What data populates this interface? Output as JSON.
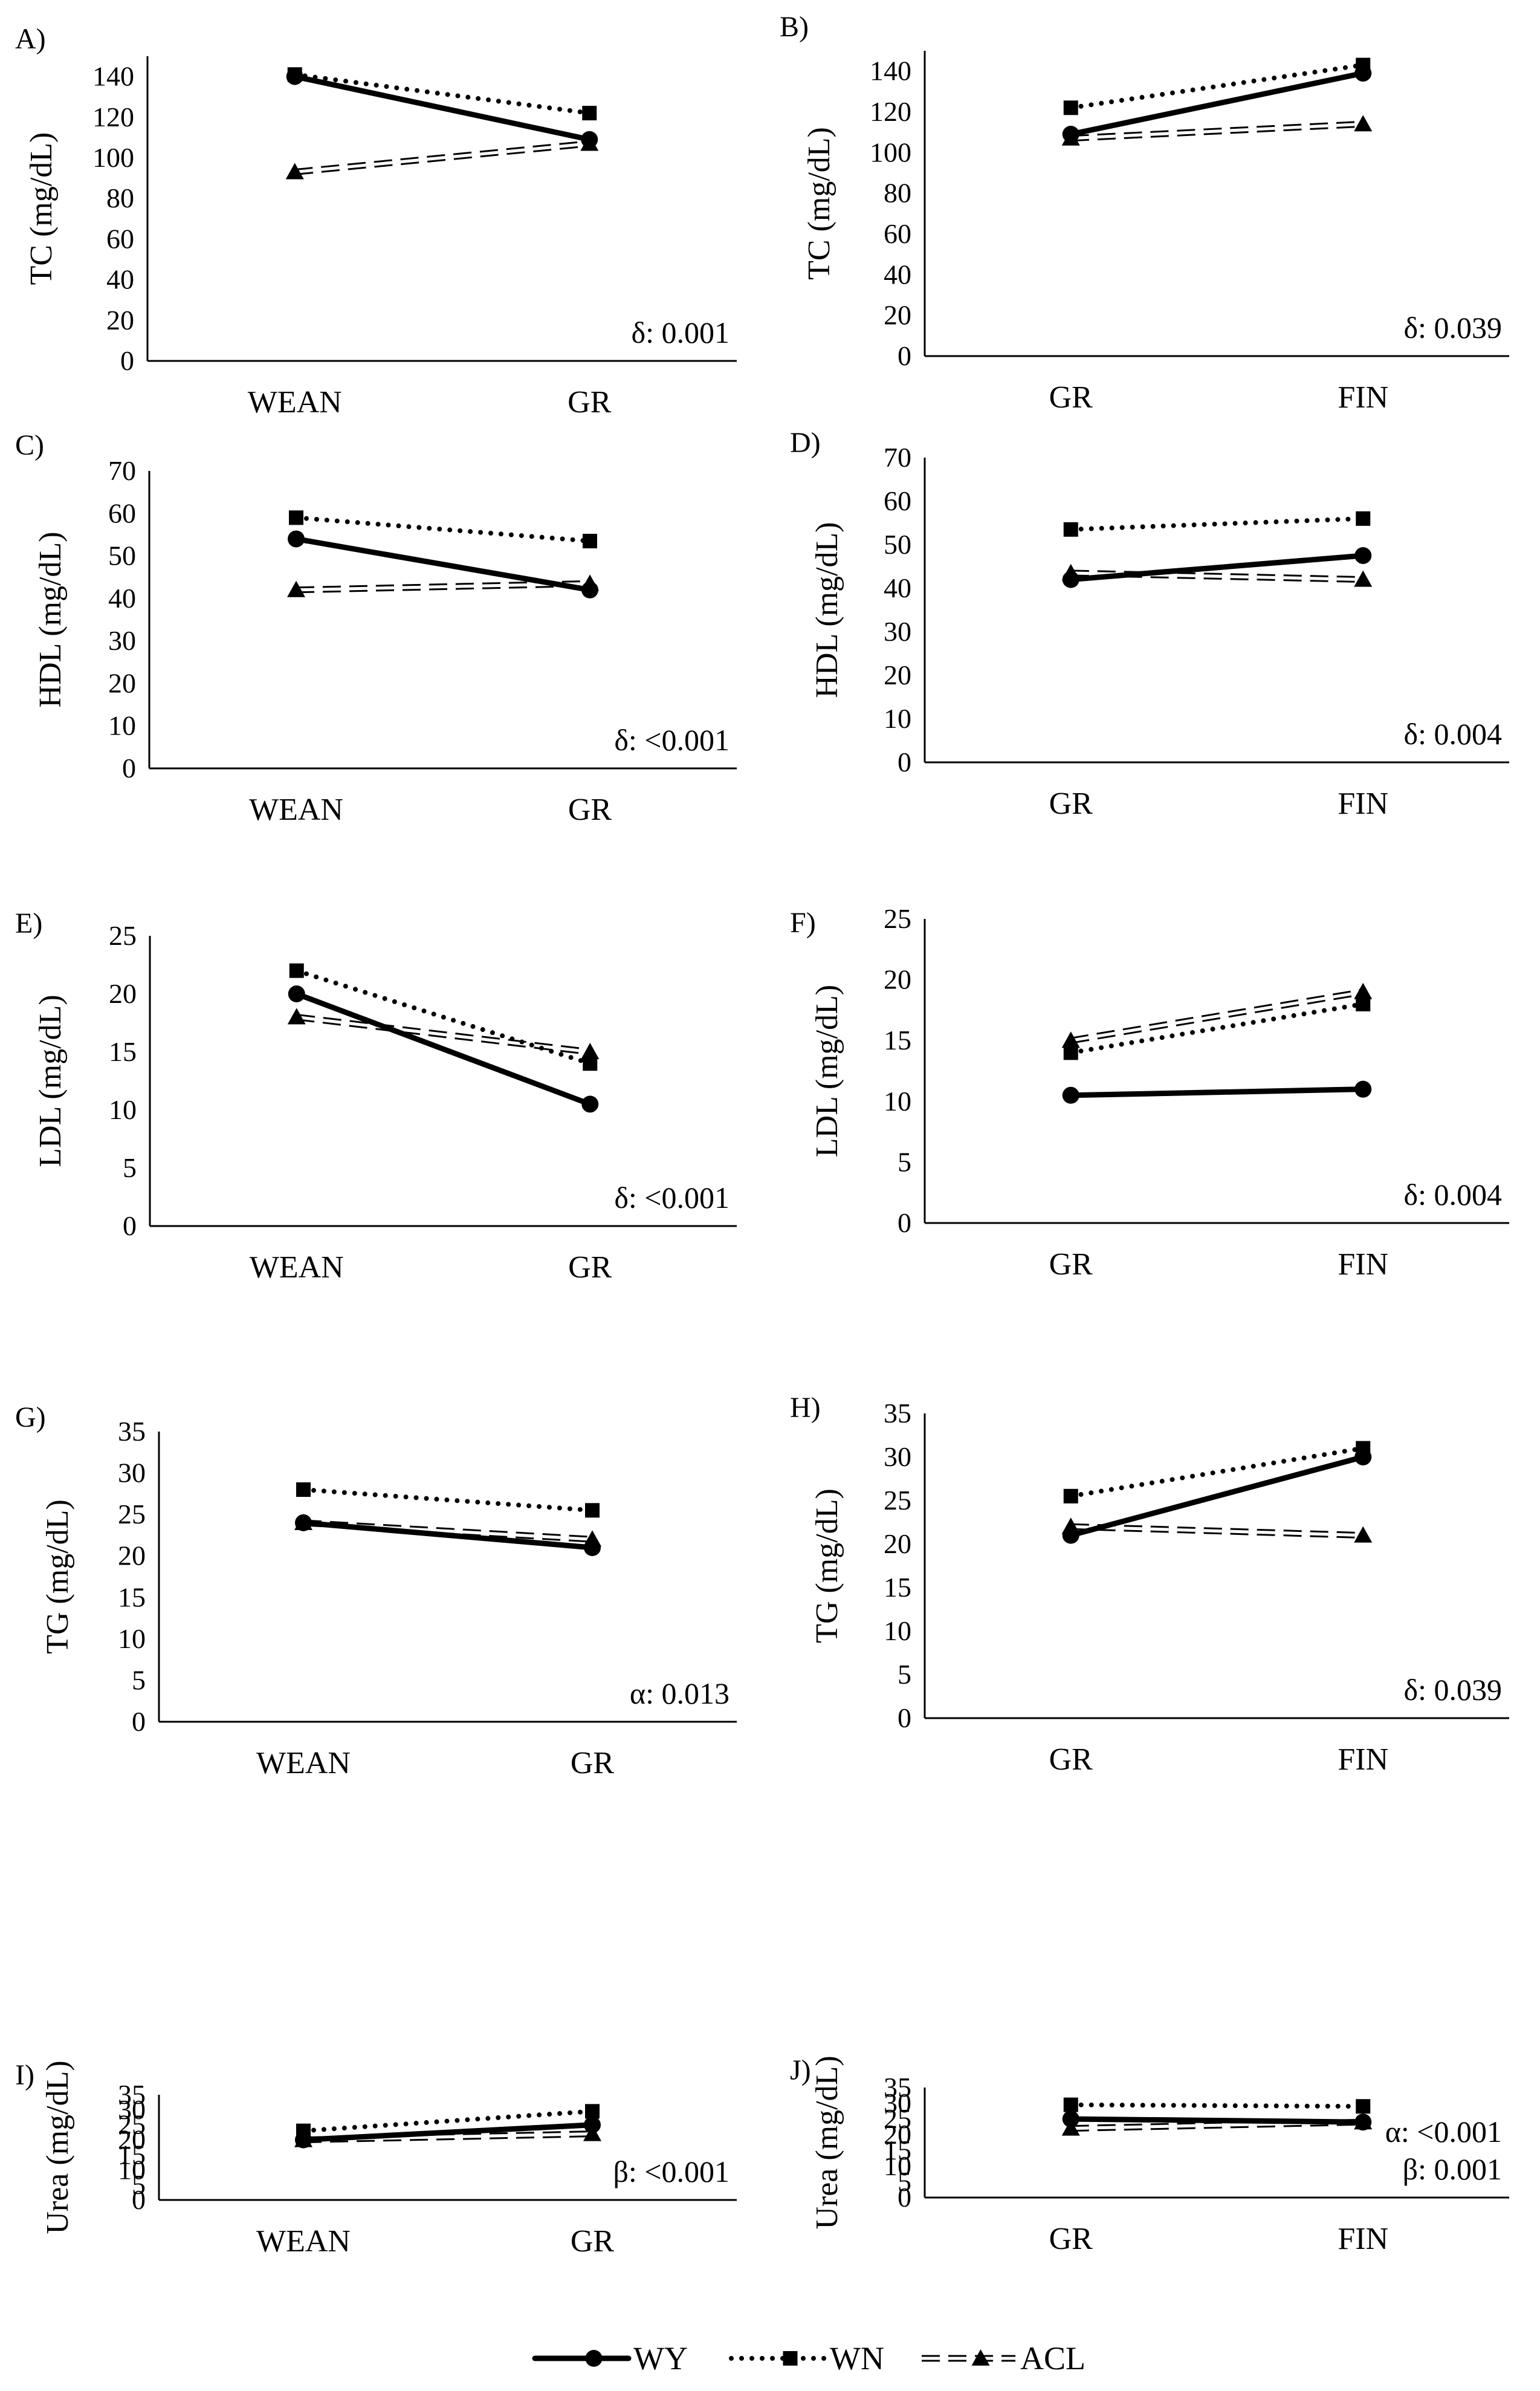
{
  "series_styles": {
    "WY": {
      "color": "#000000",
      "marker": "circle",
      "line": "solid"
    },
    "WN": {
      "color": "#000000",
      "marker": "square",
      "line": "dotted"
    },
    "ACL": {
      "color": "#000000",
      "marker": "triangle",
      "line": "hollow-dashed"
    }
  },
  "legend": [
    "WY",
    "WN",
    "ACL"
  ],
  "chart_data": [
    {
      "type": "line",
      "panel_label": "A)",
      "categories": [
        "WEAN",
        "GR"
      ],
      "ylabel": "TC (mg/dL)",
      "ylim": [
        0,
        150
      ],
      "yticks": [
        0,
        20,
        40,
        60,
        80,
        100,
        120,
        140
      ],
      "annotations": [
        "δ: 0.001"
      ],
      "series": [
        {
          "name": "WY",
          "values": [
            140,
            109
          ]
        },
        {
          "name": "WN",
          "values": [
            141,
            122
          ]
        },
        {
          "name": "ACL",
          "values": [
            93,
            107
          ]
        }
      ]
    },
    {
      "type": "line",
      "panel_label": "B)",
      "categories": [
        "GR",
        "FIN"
      ],
      "ylabel": "TC (mg/dL)",
      "ylim": [
        0,
        150
      ],
      "yticks": [
        0,
        20,
        40,
        60,
        80,
        100,
        120,
        140
      ],
      "annotations": [
        "δ: 0.039"
      ],
      "series": [
        {
          "name": "WY",
          "values": [
            109,
            139
          ]
        },
        {
          "name": "WN",
          "values": [
            122,
            143
          ]
        },
        {
          "name": "ACL",
          "values": [
            107,
            114
          ]
        }
      ]
    },
    {
      "type": "line",
      "panel_label": "C)",
      "categories": [
        "WEAN",
        "GR"
      ],
      "ylabel": "HDL (mg/dL)",
      "ylim": [
        0,
        70
      ],
      "yticks": [
        0,
        10,
        20,
        30,
        40,
        50,
        60,
        70
      ],
      "annotations": [
        "δ: <0.001"
      ],
      "series": [
        {
          "name": "WY",
          "values": [
            54,
            42
          ]
        },
        {
          "name": "WN",
          "values": [
            59,
            53.5
          ]
        },
        {
          "name": "ACL",
          "values": [
            42,
            43.5
          ]
        }
      ]
    },
    {
      "type": "line",
      "panel_label": "D)",
      "categories": [
        "GR",
        "FIN"
      ],
      "ylabel": "HDL (mg/dL)",
      "ylim": [
        0,
        70
      ],
      "yticks": [
        0,
        10,
        20,
        30,
        40,
        50,
        60,
        70
      ],
      "annotations": [
        "δ: 0.004"
      ],
      "series": [
        {
          "name": "WY",
          "values": [
            42,
            47.5
          ]
        },
        {
          "name": "WN",
          "values": [
            53.5,
            56
          ]
        },
        {
          "name": "ACL",
          "values": [
            43.5,
            42
          ]
        }
      ]
    },
    {
      "type": "line",
      "panel_label": "E)",
      "categories": [
        "WEAN",
        "GR"
      ],
      "ylabel": "LDL (mg/dL)",
      "ylim": [
        0,
        25
      ],
      "yticks": [
        0,
        5,
        10,
        15,
        20,
        25
      ],
      "annotations": [
        "δ: <0.001"
      ],
      "series": [
        {
          "name": "WY",
          "values": [
            20,
            10.5
          ]
        },
        {
          "name": "WN",
          "values": [
            22,
            14
          ]
        },
        {
          "name": "ACL",
          "values": [
            18,
            15
          ]
        }
      ]
    },
    {
      "type": "line",
      "panel_label": "F)",
      "categories": [
        "GR",
        "FIN"
      ],
      "ylabel": "LDL (mg/dL)",
      "ylim": [
        0,
        25
      ],
      "yticks": [
        0,
        5,
        10,
        15,
        20,
        25
      ],
      "annotations": [
        "δ: 0.004"
      ],
      "series": [
        {
          "name": "WY",
          "values": [
            10.5,
            11
          ]
        },
        {
          "name": "WN",
          "values": [
            14,
            18
          ]
        },
        {
          "name": "ACL",
          "values": [
            15,
            19
          ]
        }
      ]
    },
    {
      "type": "line",
      "panel_label": "G)",
      "categories": [
        "WEAN",
        "GR"
      ],
      "ylabel": "TG (mg/dL)",
      "ylim": [
        0,
        35
      ],
      "yticks": [
        0,
        5,
        10,
        15,
        20,
        25,
        30,
        35
      ],
      "annotations": [
        "α: 0.013"
      ],
      "series": [
        {
          "name": "WY",
          "values": [
            24,
            21
          ]
        },
        {
          "name": "WN",
          "values": [
            28,
            25.5
          ]
        },
        {
          "name": "ACL",
          "values": [
            24,
            22
          ]
        }
      ]
    },
    {
      "type": "line",
      "panel_label": "H)",
      "categories": [
        "GR",
        "FIN"
      ],
      "ylabel": "TG (mg/dL)",
      "ylim": [
        0,
        35
      ],
      "yticks": [
        0,
        5,
        10,
        15,
        20,
        25,
        30,
        35
      ],
      "annotations": [
        "δ: 0.039"
      ],
      "series": [
        {
          "name": "WY",
          "values": [
            21,
            30
          ]
        },
        {
          "name": "WN",
          "values": [
            25.5,
            31
          ]
        },
        {
          "name": "ACL",
          "values": [
            22,
            21
          ]
        }
      ]
    },
    {
      "type": "line",
      "panel_label": "I)",
      "categories": [
        "WEAN",
        "GR"
      ],
      "ylabel": "Urea (mg/dL)",
      "ylim": [
        0,
        35
      ],
      "yticks": [
        0,
        5,
        10,
        15,
        20,
        25,
        30,
        35
      ],
      "annotations": [
        "β: <0.001"
      ],
      "series": [
        {
          "name": "WY",
          "values": [
            20,
            25
          ]
        },
        {
          "name": "WN",
          "values": [
            23,
            29.5
          ]
        },
        {
          "name": "ACL",
          "values": [
            20,
            22
          ]
        }
      ]
    },
    {
      "type": "line",
      "panel_label": "J)",
      "categories": [
        "GR",
        "FIN"
      ],
      "ylabel": "Urea (mg/dL)",
      "ylim": [
        0,
        35
      ],
      "yticks": [
        0,
        5,
        10,
        15,
        20,
        25,
        30,
        35
      ],
      "annotations": [
        "α: <0.001",
        "β: 0.001"
      ],
      "series": [
        {
          "name": "WY",
          "values": [
            25,
            24
          ]
        },
        {
          "name": "WN",
          "values": [
            29.5,
            29
          ]
        },
        {
          "name": "ACL",
          "values": [
            22,
            24
          ]
        }
      ]
    }
  ]
}
